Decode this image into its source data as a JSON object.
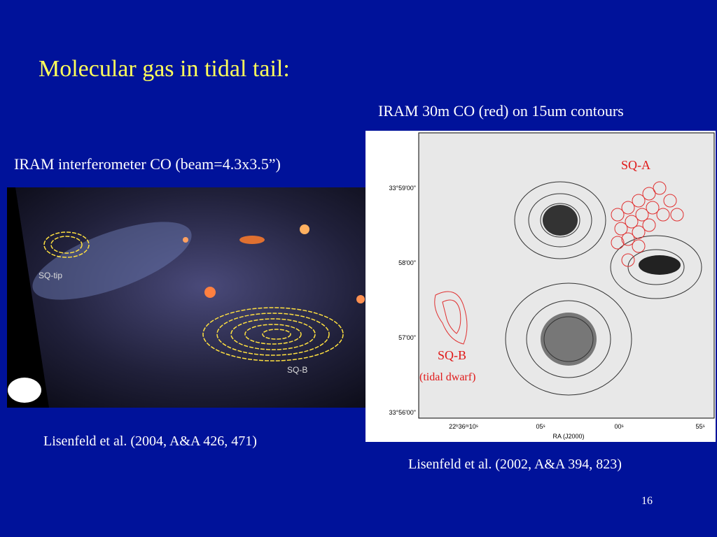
{
  "slide": {
    "title": "Molecular gas in tidal tail:",
    "left_panel": {
      "caption": "IRAM interferometer CO (beam=4.3x3.5”)",
      "labels": [
        "SQ-tip",
        "SQ-B"
      ],
      "reference": "Lisenfeld et al. (2004, A&A 426, 471)"
    },
    "right_panel": {
      "caption": "IRAM 30m CO (red) on 15um contours",
      "labels": [
        "SQ-A",
        "SQ-B",
        "(tidal dwarf)"
      ],
      "dec_ticks": [
        "33°59'00\"",
        "58'00\"",
        "57'00\"",
        "33°56'00\""
      ],
      "ra_ticks": [
        "22ʰ36ᵐ10ˢ",
        "05ˢ",
        "00ˢ",
        "55ˢ"
      ],
      "ra_label": "RA (J2000)",
      "reference": "Lisenfeld et al. (2002, A&A 394, 823)"
    },
    "page_number": "16"
  }
}
